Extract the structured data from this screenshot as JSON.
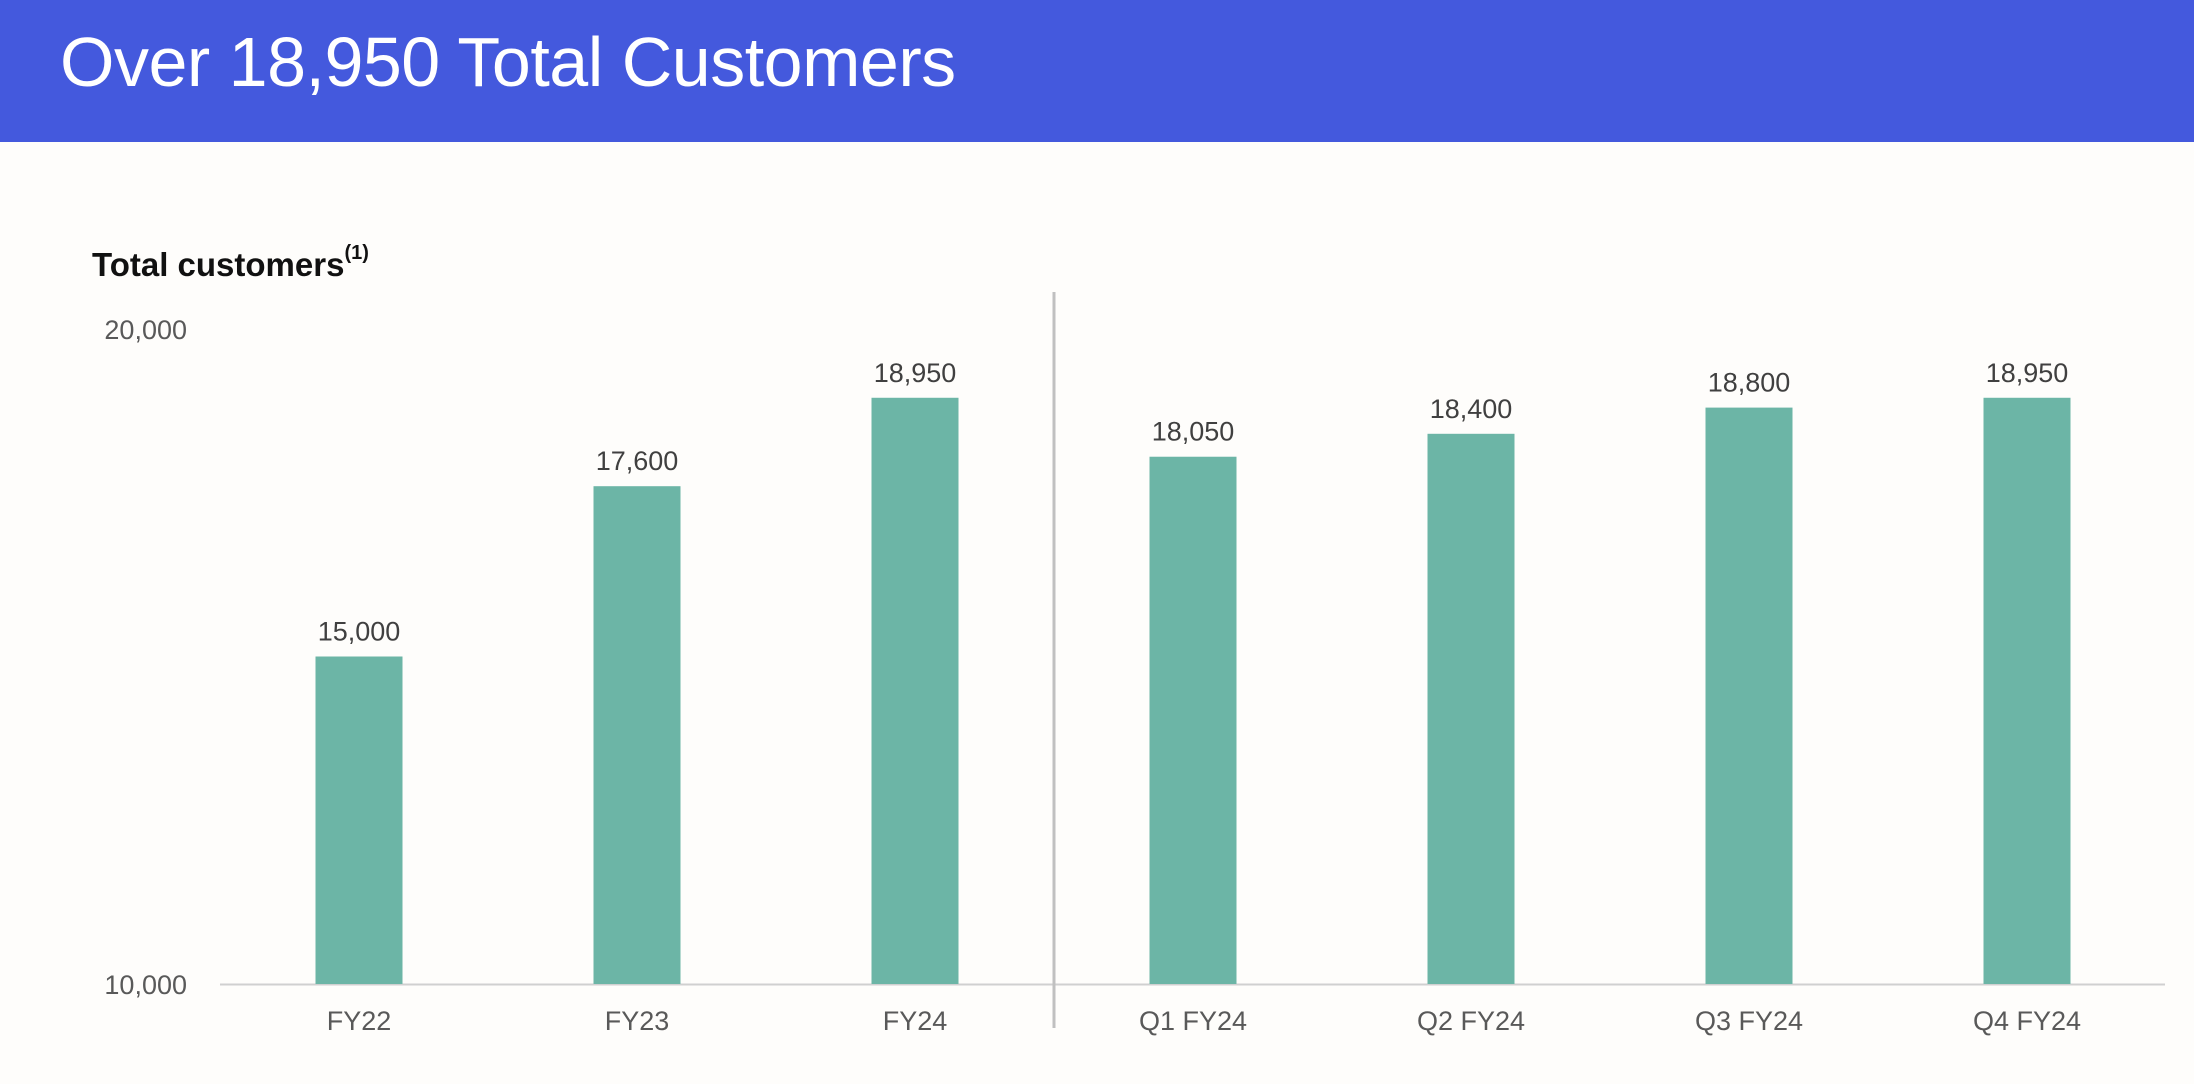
{
  "header": {
    "title": "Over 18,950 Total Customers"
  },
  "colors": {
    "header_bg": "#4459dd",
    "bar": "#6cb5a6",
    "divider": "#c0c0c0",
    "axis": "#d0d0d0",
    "label": "#595959",
    "value_label": "#404040"
  },
  "chart_data": {
    "type": "bar",
    "title": "Total customers",
    "title_footnote": "(1)",
    "xlabel": "",
    "ylabel": "",
    "ylim": [
      10000,
      20000
    ],
    "y_ticks": [
      "10,000",
      "20,000"
    ],
    "categories": [
      "FY22",
      "FY23",
      "FY24",
      "Q1 FY24",
      "Q2 FY24",
      "Q3 FY24",
      "Q4 FY24"
    ],
    "values": [
      15000,
      17600,
      18950,
      18050,
      18400,
      18800,
      18950
    ],
    "value_labels": [
      "15,000",
      "17,600",
      "18,950",
      "18,050",
      "18,400",
      "18,800",
      "18,950"
    ],
    "divider_after_category": "FY24",
    "grid": false,
    "legend": "none"
  }
}
